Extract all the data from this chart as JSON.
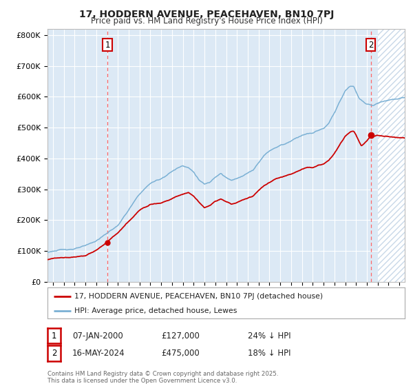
{
  "title": "17, HODDERN AVENUE, PEACEHAVEN, BN10 7PJ",
  "subtitle": "Price paid vs. HM Land Registry's House Price Index (HPI)",
  "red_label": "17, HODDERN AVENUE, PEACEHAVEN, BN10 7PJ (detached house)",
  "blue_label": "HPI: Average price, detached house, Lewes",
  "annotation1_date": "07-JAN-2000",
  "annotation1_price": "£127,000",
  "annotation1_hpi": "24% ↓ HPI",
  "annotation2_date": "16-MAY-2024",
  "annotation2_price": "£475,000",
  "annotation2_hpi": "18% ↓ HPI",
  "copyright": "Contains HM Land Registry data © Crown copyright and database right 2025.\nThis data is licensed under the Open Government Licence v3.0.",
  "red_color": "#cc0000",
  "blue_color": "#7ab0d4",
  "background_color": "#ffffff",
  "plot_bg_color": "#dce9f5",
  "grid_color": "#ffffff",
  "annotation_box_color": "#cc0000",
  "hatch_color": "#c8d8e8",
  "ylim": [
    0,
    820000
  ],
  "yticks": [
    0,
    100000,
    200000,
    300000,
    400000,
    500000,
    600000,
    700000,
    800000
  ],
  "ytick_labels": [
    "£0",
    "£100K",
    "£200K",
    "£300K",
    "£400K",
    "£500K",
    "£600K",
    "£700K",
    "£800K"
  ],
  "point1_x": 2000.03,
  "point1_y": 127000,
  "point2_x": 2024.37,
  "point2_y": 475000,
  "xmin": 1994.5,
  "xmax": 2027.5,
  "future_start": 2025.0
}
